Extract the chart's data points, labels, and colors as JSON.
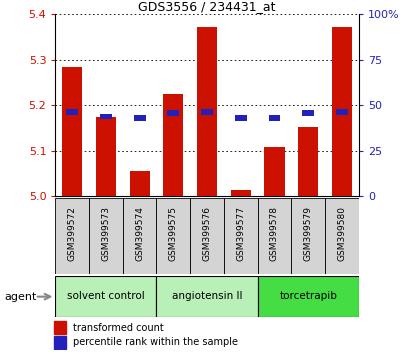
{
  "title": "GDS3556 / 234431_at",
  "samples": [
    "GSM399572",
    "GSM399573",
    "GSM399574",
    "GSM399575",
    "GSM399576",
    "GSM399577",
    "GSM399578",
    "GSM399579",
    "GSM399580"
  ],
  "red_values": [
    5.285,
    5.175,
    5.055,
    5.225,
    5.372,
    5.015,
    5.108,
    5.152,
    5.372
  ],
  "blue_values": [
    5.185,
    5.175,
    5.172,
    5.183,
    5.185,
    5.172,
    5.172,
    5.183,
    5.185
  ],
  "ylim_left": [
    5.0,
    5.4
  ],
  "ylim_right": [
    0,
    100
  ],
  "yticks_left": [
    5.0,
    5.1,
    5.2,
    5.3,
    5.4
  ],
  "yticks_right": [
    0,
    25,
    50,
    75,
    100
  ],
  "bar_width": 0.6,
  "red_color": "#cc1100",
  "blue_color": "#2222bb",
  "groups": [
    {
      "label": "solvent control",
      "indices": [
        0,
        1,
        2
      ],
      "color": "#b8f0b8"
    },
    {
      "label": "angiotensin II",
      "indices": [
        3,
        4,
        5
      ],
      "color": "#b8f0b8"
    },
    {
      "label": "torcetrapib",
      "indices": [
        6,
        7,
        8
      ],
      "color": "#44dd44"
    }
  ],
  "background_color": "#ffffff",
  "plot_bg_color": "#ffffff",
  "grid_color": "#000000",
  "tick_label_color_left": "#cc1100",
  "tick_label_color_right": "#2222bb",
  "legend_red": "transformed count",
  "legend_blue": "percentile rank within the sample",
  "agent_label": "agent",
  "sample_box_color": "#d4d4d4"
}
